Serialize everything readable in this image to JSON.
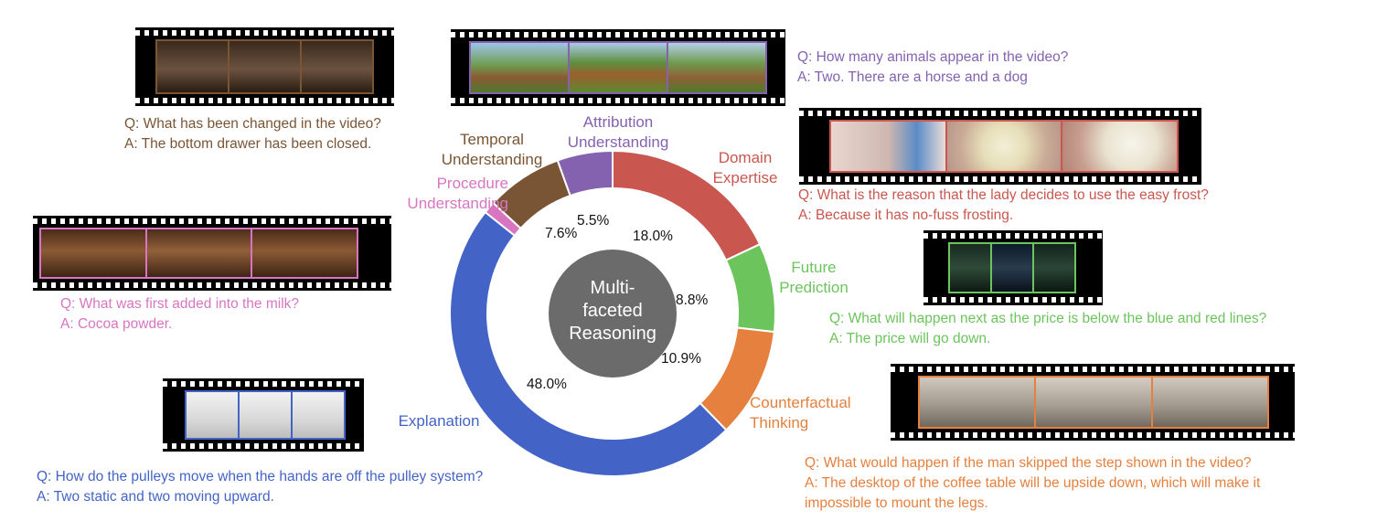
{
  "chart_data": {
    "type": "pie",
    "style": "donut",
    "center_label": [
      "Multi-",
      "faceted",
      "Reasoning"
    ],
    "slices": [
      {
        "label": "Attribution\nUnderstanding",
        "value": 5.5,
        "color": "#8462b0"
      },
      {
        "label": "Domain\nExpertise",
        "value": 18.0,
        "color": "#c9574f"
      },
      {
        "label": "Future\nPrediction",
        "value": 8.8,
        "color": "#6cc45c"
      },
      {
        "label": "Counterfactual\nThinking",
        "value": 10.9,
        "color": "#e5803f"
      },
      {
        "label": "Explanation",
        "value": 48.0,
        "color": "#4364c6"
      },
      {
        "label": "Procedure\nUnderstanding",
        "value": 1.2,
        "color": "#d875c0"
      },
      {
        "label": "Temporal\nUnderstanding",
        "value": 7.6,
        "color": "#7a5535"
      }
    ],
    "value_labels": [
      "5.5%",
      "18.0%",
      "8.8%",
      "10.9%",
      "48.0%",
      "",
      "7.6%"
    ]
  },
  "examples": {
    "temporal": {
      "q": "Q: What has been changed in the video?",
      "a": "A: The bottom drawer has been closed.",
      "color": "#7a5535"
    },
    "attribution": {
      "q": "Q: How many animals appear in the video?",
      "a": "A: Two. There are a horse and a dog",
      "color": "#8462b0"
    },
    "domain": {
      "q": "Q: What is the reason that the lady decides to use the easy frost?",
      "a": "A: Because it has no-fuss frosting.",
      "color": "#c9574f"
    },
    "procedure": {
      "q": "Q: What was first added into the milk?",
      "a": "A: Cocoa powder.",
      "color": "#d875c0"
    },
    "future": {
      "q": "Q: What will happen next as the price is below the blue and red lines?",
      "a": "A: The price will go down.",
      "color": "#6cc45c"
    },
    "explanation": {
      "q": "Q: How do the pulleys move when the hands are off the pulley system?",
      "a": "A: Two static and two moving upward.",
      "color": "#4364c6"
    },
    "counterfactual": {
      "q": "Q: What would happen if the man skipped the step shown in the video?",
      "a1": "A: The desktop of the coffee table will be upside down, which will make it",
      "a2": "impossible to mount the legs.",
      "color": "#e5803f"
    }
  }
}
